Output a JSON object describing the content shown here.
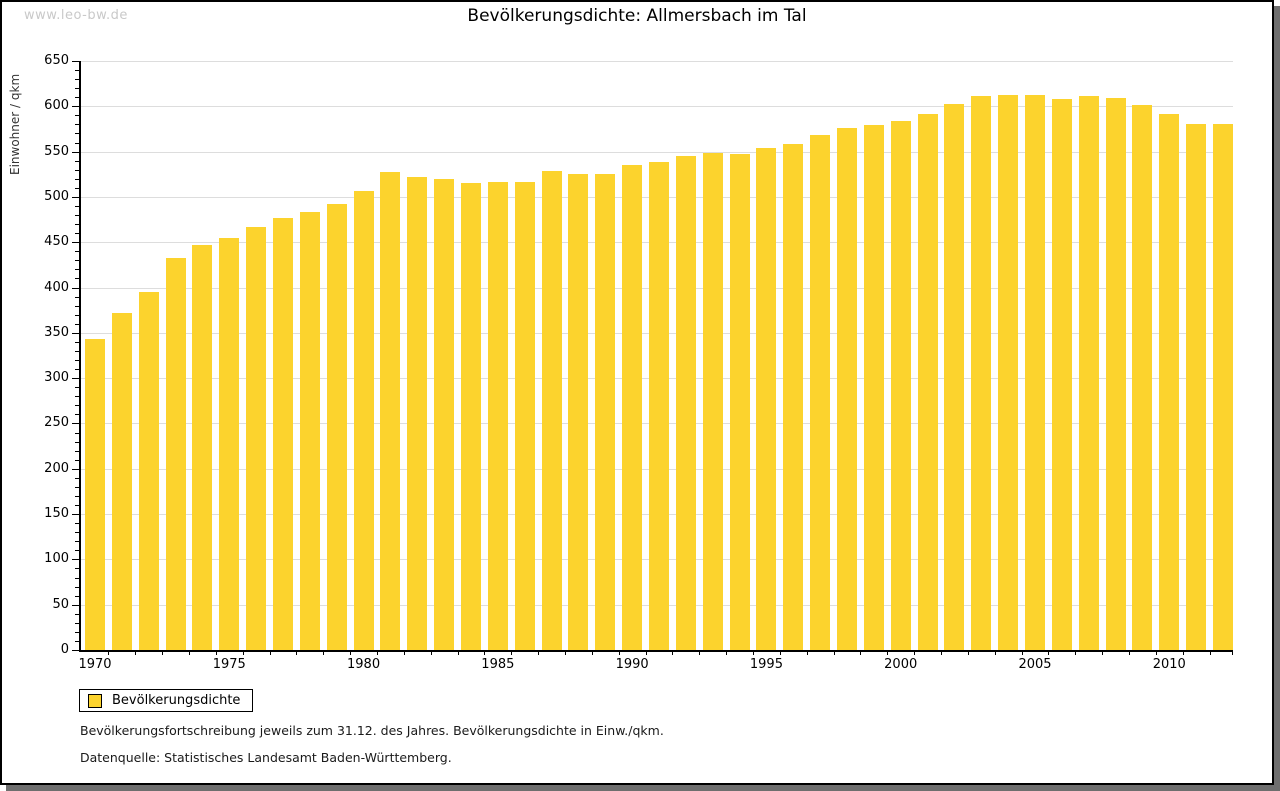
{
  "watermark": "www.leo-bw.de",
  "chart_data": {
    "type": "bar",
    "title": "Bevölkerungsdichte: Allmersbach im Tal",
    "ylabel": "Einwohner / qkm",
    "legend": "Bevölkerungsdichte",
    "bar_color": "#fcd32d",
    "gridline_color": "#dddddd",
    "grid": true,
    "legend_position": "bottom-left",
    "ylim": [
      0,
      650
    ],
    "ytick_step": 50,
    "yminor_step": 10,
    "xtick_labels": [
      "1970",
      "1975",
      "1980",
      "1985",
      "1990",
      "1995",
      "2000",
      "2005",
      "2010"
    ],
    "categories": [
      1970,
      1971,
      1972,
      1973,
      1974,
      1975,
      1976,
      1977,
      1978,
      1979,
      1980,
      1981,
      1982,
      1983,
      1984,
      1985,
      1986,
      1987,
      1988,
      1989,
      1990,
      1991,
      1992,
      1993,
      1994,
      1995,
      1996,
      1997,
      1998,
      1999,
      2000,
      2001,
      2002,
      2003,
      2004,
      2005,
      2006,
      2007,
      2008,
      2009,
      2010,
      2011,
      2012
    ],
    "values": [
      343,
      372,
      395,
      433,
      447,
      455,
      467,
      477,
      483,
      492,
      507,
      527,
      522,
      520,
      515,
      516,
      516,
      529,
      525,
      525,
      535,
      538,
      545,
      549,
      547,
      554,
      558,
      568,
      576,
      579,
      584,
      592,
      603,
      611,
      612,
      613,
      608,
      611,
      609,
      601,
      592,
      581,
      580
    ]
  },
  "footnotes": [
    "Bevölkerungsfortschreibung jeweils zum 31.12. des Jahres. Bevölkerungsdichte in Einw./qkm.",
    "Datenquelle: Statistisches Landesamt Baden-Württemberg."
  ]
}
